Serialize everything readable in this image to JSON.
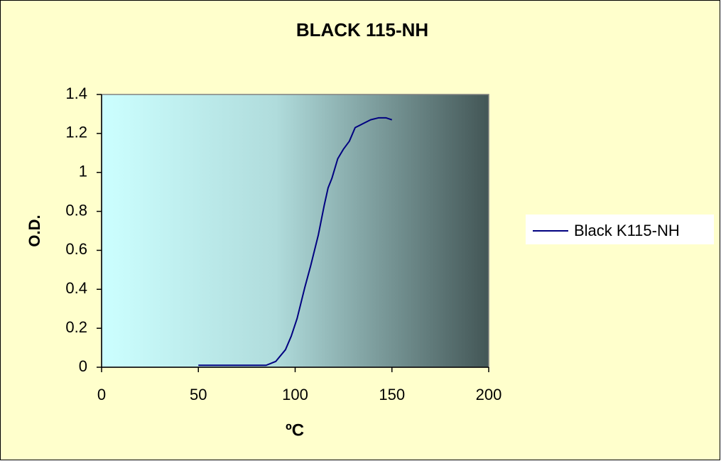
{
  "chart_data": {
    "type": "line",
    "title": "BLACK 115-NH",
    "x_label": "ºC",
    "y_label": "O.D.",
    "series": [
      {
        "name": "Black K115-NH",
        "color": "#000080",
        "x": [
          50,
          60,
          70,
          80,
          85,
          90,
          95,
          98,
          101,
          105,
          108,
          112,
          115,
          117,
          119,
          122,
          125,
          128,
          131,
          135,
          139,
          143,
          147,
          150
        ],
        "values": [
          0.01,
          0.01,
          0.01,
          0.01,
          0.01,
          0.03,
          0.09,
          0.16,
          0.25,
          0.41,
          0.52,
          0.68,
          0.83,
          0.92,
          0.97,
          1.07,
          1.12,
          1.16,
          1.23,
          1.25,
          1.27,
          1.28,
          1.28,
          1.27
        ]
      }
    ],
    "xlim": [
      0,
      200
    ],
    "xticks": [
      0,
      50,
      100,
      150,
      200
    ],
    "ylim": [
      0,
      1.4
    ],
    "yticks": [
      0,
      0.2,
      0.4,
      0.6,
      0.8,
      1,
      1.2,
      1.4
    ],
    "grid": false,
    "legend": "right"
  }
}
